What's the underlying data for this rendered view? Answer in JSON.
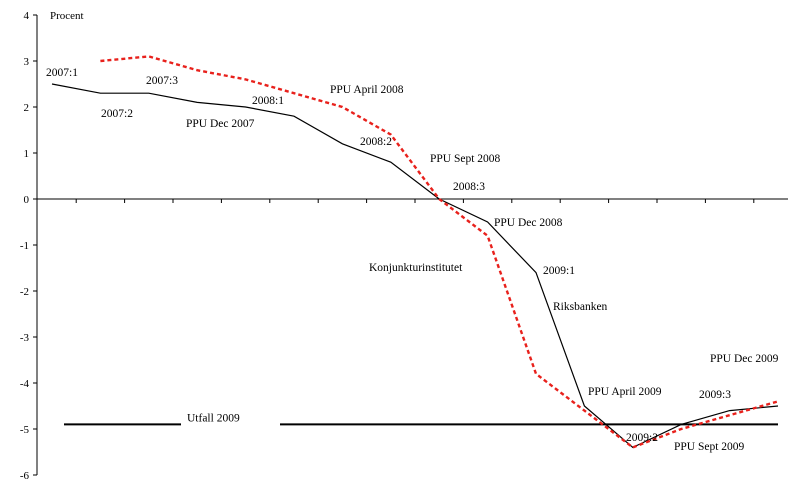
{
  "chart_data": {
    "type": "line",
    "ylabel": "Procent",
    "ylim": [
      -6,
      4
    ],
    "yticks": [
      "4",
      "3",
      "2",
      "1",
      "0",
      "-1",
      "-2",
      "-3",
      "-4",
      "-5",
      "-6"
    ],
    "x_count": 16,
    "series": [
      {
        "name": "Riksbanken",
        "color": "#000000",
        "style": "solid",
        "x": [
          0,
          1,
          2,
          3,
          4,
          5,
          6,
          7,
          8,
          9,
          10,
          11,
          12,
          13,
          14,
          15
        ],
        "values": [
          2.5,
          2.3,
          2.3,
          2.1,
          2.0,
          1.8,
          1.2,
          0.8,
          0.0,
          -0.5,
          -1.6,
          -4.5,
          -5.4,
          -4.9,
          -4.6,
          -4.5
        ]
      },
      {
        "name": "Konjunkturinstitutet",
        "color": "#e8211c",
        "style": "dashed",
        "x": [
          1,
          2,
          3,
          4,
          5,
          6,
          7,
          8,
          9,
          10,
          11,
          12,
          13,
          14,
          15
        ],
        "values": [
          3.0,
          3.1,
          2.8,
          2.6,
          2.3,
          2.0,
          1.4,
          0.0,
          -0.8,
          -3.8,
          -4.6,
          -5.4,
          -5.0,
          -4.7,
          -4.4
        ]
      }
    ],
    "outcome": {
      "label": "Utfall 2009",
      "value": -4.9
    },
    "annotations": [
      "2007:1",
      "2007:2",
      "2007:3",
      "2008:1",
      "2008:2",
      "2008:3",
      "2009:1",
      "2009:2",
      "2009:3",
      "PPU Dec 2007",
      "PPU April 2008",
      "PPU Sept 2008",
      "PPU Dec 2008",
      "PPU April 2009",
      "PPU Sept 2009",
      "PPU Dec 2009",
      "Konjunkturinstitutet",
      "Riksbanken"
    ]
  }
}
